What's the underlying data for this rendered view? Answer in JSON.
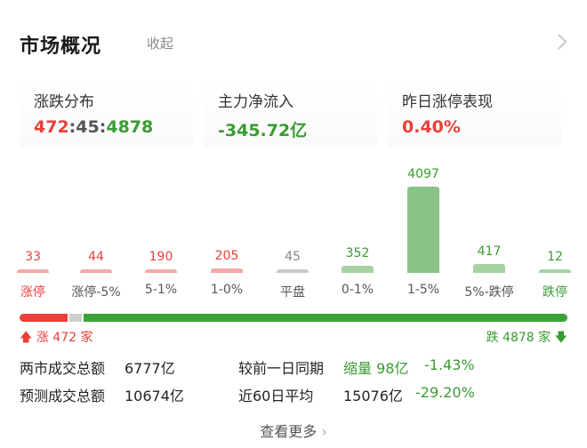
{
  "header": {
    "title": "市场概况",
    "collapse_label": "收起"
  },
  "cards": [
    {
      "label": "涨跌分布",
      "up": "472",
      "flat": "45",
      "down": "4878"
    },
    {
      "label": "主力净流入",
      "value": "-345.72亿"
    },
    {
      "label": "昨日涨停表现",
      "value": "0.40%"
    }
  ],
  "distribution": [
    {
      "label": "涨停",
      "count": "33",
      "color": "#e8403a"
    },
    {
      "label": "涨停-5%",
      "count": "44",
      "color": "#e8403a"
    },
    {
      "label": "5-1%",
      "count": "190",
      "color": "#e8403a"
    },
    {
      "label": "1-0%",
      "count": "205",
      "color": "#e8403a"
    },
    {
      "label": "平盘",
      "count": "45",
      "color": "#888888"
    },
    {
      "label": "0-1%",
      "count": "352",
      "color": "#3a9b33"
    },
    {
      "label": "1-5%",
      "count": "4097",
      "color": "#3a9b33"
    },
    {
      "label": "5%-跌停",
      "count": "417",
      "color": "#3a9b33"
    },
    {
      "label": "跌停",
      "count": "12",
      "color": "#3a9b33"
    }
  ],
  "ratio_bar": {
    "up_label": "涨 472 家",
    "down_label": "跌 4878 家",
    "up": 472,
    "flat": 45,
    "down": 4878
  },
  "stats": {
    "turnover_label": "两市成交总额",
    "turnover_value": "6777亿",
    "forecast_label": "预测成交总额",
    "forecast_value": "10674亿",
    "compare_label": "较前一日同期",
    "compare_value": "缩量 98亿",
    "compare_pct": "-1.43%",
    "avg_label": "近60日平均",
    "avg_value": "15076亿",
    "avg_pct": "-29.20%"
  },
  "more_label": "查看更多",
  "colors": {
    "up": "#e8403a",
    "down": "#3a9b33",
    "flat": "#888888"
  }
}
